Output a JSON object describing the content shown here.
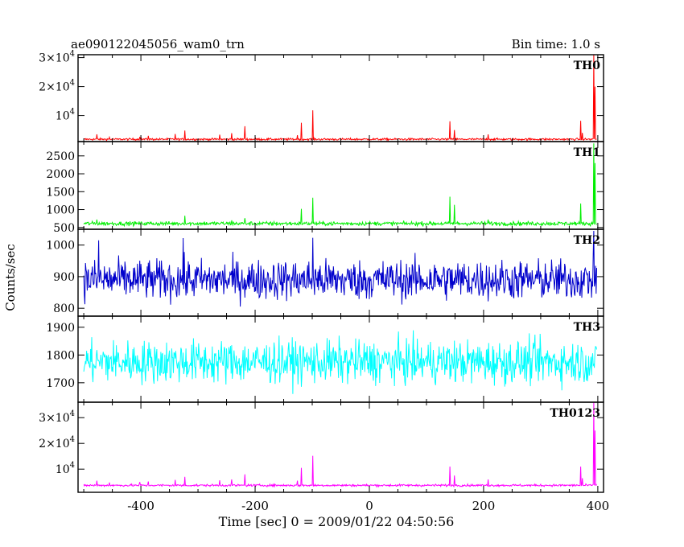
{
  "header": {
    "title": "ae090122045056_wam0_trn",
    "bin_time": "Bin time: 1.0 s"
  },
  "axes": {
    "ylabel": "Counts/sec",
    "xlabel": "Time [sec] 0 = 2009/01/22 04:50:56",
    "x_ticks": [
      "-400",
      "-200",
      "0",
      "200",
      "400"
    ]
  },
  "chart_data": [
    {
      "type": "line",
      "name": "TH0",
      "color": "#ff0000",
      "xlim": [
        -510,
        410
      ],
      "ylim": [
        1000,
        31000
      ],
      "yticks": [
        10000,
        20000,
        30000
      ],
      "baseline": 1800,
      "noise": 250,
      "spikes": [
        [
          -477,
          3500
        ],
        [
          -455,
          2500
        ],
        [
          -402,
          2600
        ],
        [
          -387,
          3000
        ],
        [
          -340,
          3600
        ],
        [
          -323,
          4800
        ],
        [
          -262,
          3400
        ],
        [
          -241,
          3900
        ],
        [
          -218,
          6300
        ],
        [
          -126,
          3200
        ],
        [
          -119,
          7500
        ],
        [
          -99,
          11800
        ],
        [
          141,
          8000
        ],
        [
          149,
          5000
        ],
        [
          208,
          3500
        ],
        [
          370,
          8200
        ],
        [
          373,
          4000
        ],
        [
          393,
          31000
        ],
        [
          395,
          20000
        ]
      ]
    },
    {
      "type": "line",
      "name": "TH1",
      "color": "#00ee00",
      "xlim": [
        -510,
        410
      ],
      "ylim": [
        450,
        2900
      ],
      "yticks": [
        500,
        1000,
        1500,
        2000,
        2500
      ],
      "ytick_labels": [
        "500",
        "1000",
        "1500",
        "2000",
        "2500"
      ],
      "baseline": 610,
      "noise": 40,
      "spikes": [
        [
          -477,
          720
        ],
        [
          -323,
          830
        ],
        [
          -241,
          700
        ],
        [
          -218,
          760
        ],
        [
          -119,
          1020
        ],
        [
          -99,
          1330
        ],
        [
          141,
          1360
        ],
        [
          149,
          1130
        ],
        [
          208,
          720
        ],
        [
          370,
          1170
        ],
        [
          393,
          2850
        ],
        [
          395,
          2300
        ]
      ]
    },
    {
      "type": "line",
      "name": "TH2",
      "color": "#0000cc",
      "xlim": [
        -510,
        410
      ],
      "ylim": [
        775,
        1050
      ],
      "yticks": [
        800,
        900,
        1000
      ],
      "ytick_labels": [
        "800",
        "900",
        "1000"
      ],
      "baseline": 890,
      "noise": 45,
      "spikes": [
        [
          -474,
          1015
        ],
        [
          -326,
          1022
        ],
        [
          -99,
          1023
        ],
        [
          393,
          1045
        ]
      ]
    },
    {
      "type": "line",
      "name": "TH3",
      "color": "#00ffff",
      "xlim": [
        -510,
        410
      ],
      "ylim": [
        1630,
        1940
      ],
      "yticks": [
        1700,
        1800,
        1900
      ],
      "ytick_labels": [
        "1700",
        "1800",
        "1900"
      ],
      "baseline": 1775,
      "noise": 55,
      "spikes": []
    },
    {
      "type": "line",
      "name": "TH0123",
      "color": "#ff00ff",
      "xlim": [
        -510,
        410
      ],
      "ylim": [
        1000,
        36000
      ],
      "yticks": [
        10000,
        20000,
        30000
      ],
      "baseline": 3700,
      "noise": 300,
      "spikes": [
        [
          -477,
          5500
        ],
        [
          -455,
          4800
        ],
        [
          -402,
          5000
        ],
        [
          -387,
          5200
        ],
        [
          -340,
          5800
        ],
        [
          -323,
          7000
        ],
        [
          -262,
          5700
        ],
        [
          -241,
          6000
        ],
        [
          -218,
          8000
        ],
        [
          -126,
          5500
        ],
        [
          -119,
          10500
        ],
        [
          -99,
          15200
        ],
        [
          141,
          11000
        ],
        [
          149,
          7500
        ],
        [
          208,
          6000
        ],
        [
          370,
          11000
        ],
        [
          373,
          6500
        ],
        [
          393,
          36000
        ],
        [
          395,
          25000
        ]
      ]
    }
  ]
}
